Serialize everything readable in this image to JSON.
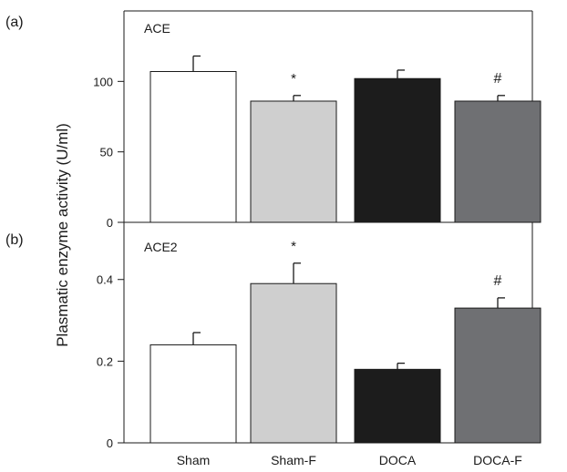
{
  "ylabel": "Plasmatic enzyme activity (U/ml)",
  "colors": [
    "#ffffff",
    "#cfcfcf",
    "#1c1c1c",
    "#6f7073"
  ],
  "chart_data": [
    {
      "type": "bar",
      "panel_label": "(a)",
      "title": "ACE",
      "categories": [
        "Sham",
        "Sham-F",
        "DOCA",
        "DOCA-F"
      ],
      "values": [
        107,
        86,
        102,
        86
      ],
      "errors": [
        11,
        4,
        6,
        4
      ],
      "annotations": [
        "",
        "*",
        "",
        "#"
      ],
      "ylim": [
        0,
        150
      ],
      "yticks": [
        0,
        50,
        100
      ],
      "ytick_labels": [
        "0",
        "50",
        "100"
      ]
    },
    {
      "type": "bar",
      "panel_label": "(b)",
      "title": "ACE2",
      "categories": [
        "Sham",
        "Sham-F",
        "DOCA",
        "DOCA-F"
      ],
      "values": [
        0.24,
        0.39,
        0.18,
        0.33
      ],
      "errors": [
        0.03,
        0.05,
        0.015,
        0.025
      ],
      "annotations": [
        "",
        "*",
        "",
        "#"
      ],
      "ylim": [
        0,
        0.54
      ],
      "yticks": [
        0,
        0.2,
        0.4
      ],
      "ytick_labels": [
        "0",
        "0.2",
        "0.4"
      ]
    }
  ]
}
